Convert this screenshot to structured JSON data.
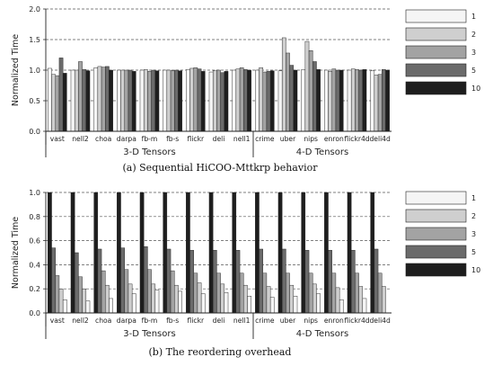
{
  "chart_data": [
    {
      "type": "bar",
      "ylabel": "Normalized Time",
      "ylim": [
        0,
        2.0
      ],
      "yticks": [
        "0.0",
        "0.5",
        "1.0",
        "1.5",
        "2.0"
      ],
      "grid": "horizontal dashed at 0.5, 1.5, 2.0",
      "legend_placement": "right",
      "caption": "(a) Sequential HiCOO-Mttkrp behavior",
      "categories": [
        "vast",
        "nell2",
        "choa",
        "darpa",
        "fb-m",
        "fb-s",
        "flickr",
        "deli",
        "nell1",
        "crime",
        "uber",
        "nips",
        "enron",
        "flickr4d",
        "deli4d"
      ],
      "groups": [
        {
          "label": "3-D Tensors",
          "count": 9
        },
        {
          "label": "4-D Tensors",
          "count": 6
        }
      ],
      "series": [
        {
          "name": "1",
          "values": [
            1.03,
            1.0,
            1.04,
            1.0,
            1.0,
            1.0,
            1.01,
            0.97,
            1.0,
            1.0,
            0.99,
            1.01,
            1.0,
            1.0,
            0.99
          ]
        },
        {
          "name": "2",
          "values": [
            0.93,
            1.0,
            1.06,
            1.0,
            1.01,
            1.0,
            1.03,
            0.99,
            1.02,
            1.04,
            1.53,
            1.47,
            0.98,
            1.02,
            0.92
          ]
        },
        {
          "name": "3",
          "values": [
            0.91,
            1.14,
            1.05,
            1.0,
            0.98,
            0.99,
            1.04,
            1.0,
            1.04,
            0.97,
            1.28,
            1.32,
            1.02,
            1.01,
            0.93
          ]
        },
        {
          "name": "5",
          "values": [
            1.2,
            1.01,
            1.06,
            1.0,
            1.0,
            1.0,
            1.02,
            0.96,
            1.01,
            0.98,
            1.08,
            1.14,
            1.0,
            1.0,
            1.01
          ]
        },
        {
          "name": "10",
          "values": [
            0.95,
            0.99,
            1.0,
            0.98,
            0.99,
            0.99,
            0.98,
            0.98,
            1.0,
            0.99,
            1.0,
            1.01,
            1.0,
            1.01,
            1.0
          ]
        }
      ]
    },
    {
      "type": "bar",
      "ylabel": "Normalized Time",
      "ylim": [
        0,
        1.0
      ],
      "yticks": [
        "0.0",
        "0.2",
        "0.4",
        "0.6",
        "0.8",
        "1.0"
      ],
      "grid": "horizontal dashed",
      "legend_placement": "right",
      "caption": "(b) The reordering overhead",
      "categories": [
        "vast",
        "nell2",
        "choa",
        "darpa",
        "fb-m",
        "fb-s",
        "flickr",
        "deli",
        "nell1",
        "crime",
        "uber",
        "nips",
        "enron",
        "flickr4d",
        "deli4d"
      ],
      "groups": [
        {
          "label": "3-D Tensors",
          "count": 9
        },
        {
          "label": "4-D Tensors",
          "count": 6
        }
      ],
      "series": [
        {
          "name": "10",
          "values": [
            1.0,
            1.0,
            1.0,
            1.0,
            1.0,
            1.0,
            1.0,
            1.0,
            1.0,
            1.0,
            1.0,
            1.0,
            1.0,
            1.0,
            1.0
          ]
        },
        {
          "name": "5",
          "values": [
            0.54,
            0.5,
            0.53,
            0.54,
            0.55,
            0.53,
            0.52,
            0.52,
            0.52,
            0.53,
            0.53,
            0.52,
            0.52,
            0.52,
            0.53
          ]
        },
        {
          "name": "3",
          "values": [
            0.31,
            0.3,
            0.35,
            0.36,
            0.36,
            0.35,
            0.33,
            0.33,
            0.33,
            0.33,
            0.33,
            0.33,
            0.33,
            0.33,
            0.33
          ]
        },
        {
          "name": "2",
          "values": [
            0.2,
            0.2,
            0.23,
            0.24,
            0.24,
            0.23,
            0.25,
            0.24,
            0.23,
            0.22,
            0.23,
            0.24,
            0.21,
            0.22,
            0.22
          ]
        },
        {
          "name": "1",
          "values": [
            0.11,
            0.1,
            0.12,
            0.16,
            0.19,
            0.18,
            0.16,
            0.17,
            0.14,
            0.13,
            0.14,
            0.16,
            0.11,
            0.12,
            0.0
          ]
        }
      ]
    }
  ],
  "legend": [
    {
      "name": "1",
      "color": "#f5f5f5"
    },
    {
      "name": "2",
      "color": "#cfcfcf"
    },
    {
      "name": "3",
      "color": "#a3a3a3"
    },
    {
      "name": "5",
      "color": "#6b6b6b"
    },
    {
      "name": "10",
      "color": "#1e1e1e"
    }
  ]
}
